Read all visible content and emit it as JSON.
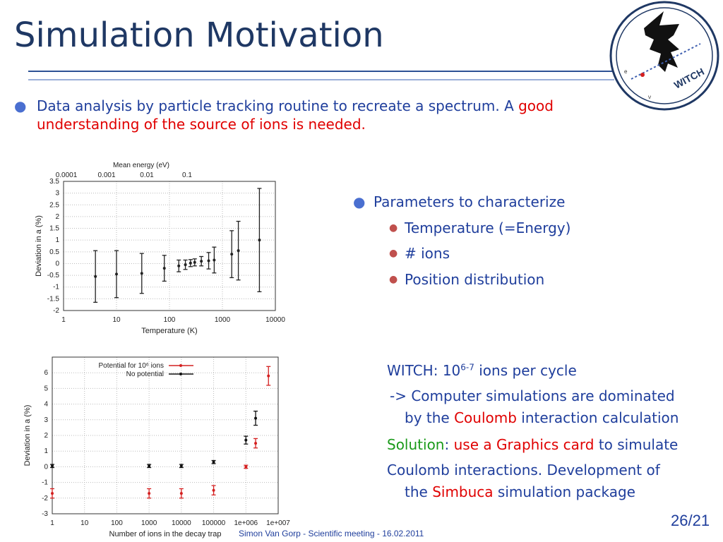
{
  "slide": {
    "title": "Simulation Motivation",
    "bullet1": {
      "text_a": "Data analysis by particle tracking routine to recreate a spectrum. A ",
      "text_b": "good",
      "text_c": "understanding of the source of ions is needed."
    },
    "params": {
      "heading": "Parameters to characterize",
      "items": [
        "Temperature (=Energy)",
        "# ions",
        "Position distribution"
      ]
    },
    "witch": {
      "line1_a": "WITCH: 10",
      "line1_sup": "6-7",
      "line1_b": " ions per cycle",
      "line2": "-> Computer simulations are dominated",
      "line3_a": "by the ",
      "line3_b": "Coulomb",
      "line3_c": " interaction calculation",
      "line4_a": "Solution",
      "line4_b": ": ",
      "line4_c": "use a Graphics card",
      "line4_d": " to simulate",
      "line5": "Coulomb interactions. Development of",
      "line6_a": "the ",
      "line6_b": "Simbuca",
      "line6_c": " simulation package"
    },
    "footer": "Simon Van Gorp - Scientific meeting - 16.02.2011",
    "page": "26/21",
    "logo_text": "WITCH",
    "logo_small": [
      "e",
      "ν"
    ]
  },
  "colors": {
    "title": "#1f3864",
    "text": "#1f3e9c",
    "highlight": "#e00000",
    "solution": "#1a9a1a"
  },
  "chart_data": [
    {
      "type": "scatter",
      "title": "",
      "top_axis_label": "Mean energy (eV)",
      "top_ticks": [
        "0.0001",
        "0.001",
        "0.01",
        "0.1"
      ],
      "xlabel": "Temperature (K)",
      "ylabel": "Deviation in a (%)",
      "xscale": "log",
      "xlim": [
        1,
        10000
      ],
      "ylim": [
        -2,
        3.5
      ],
      "xticks": [
        "1",
        "10",
        "100",
        "1000",
        "10000"
      ],
      "yticks": [
        "3.5",
        "3",
        "2.5",
        "2",
        "1.5",
        "1",
        "0.5",
        "0",
        "-0.5",
        "-1",
        "-1.5",
        "-2"
      ],
      "grid": true,
      "series": [
        {
          "color": "#222222",
          "points": [
            {
              "x": 4,
              "y": -0.55,
              "err": 1.1
            },
            {
              "x": 10,
              "y": -0.45,
              "err": 1.0
            },
            {
              "x": 30,
              "y": -0.42,
              "err": 0.85
            },
            {
              "x": 80,
              "y": -0.2,
              "err": 0.55
            },
            {
              "x": 150,
              "y": -0.1,
              "err": 0.25
            },
            {
              "x": 200,
              "y": -0.05,
              "err": 0.2
            },
            {
              "x": 250,
              "y": 0.02,
              "err": 0.15
            },
            {
              "x": 300,
              "y": 0.05,
              "err": 0.15
            },
            {
              "x": 400,
              "y": 0.1,
              "err": 0.2
            },
            {
              "x": 550,
              "y": 0.12,
              "err": 0.35
            },
            {
              "x": 700,
              "y": 0.15,
              "err": 0.55
            },
            {
              "x": 1500,
              "y": 0.4,
              "err": 1.0
            },
            {
              "x": 2000,
              "y": 0.55,
              "err": 1.25
            },
            {
              "x": 5000,
              "y": 1.0,
              "err": 2.2
            }
          ]
        }
      ]
    },
    {
      "type": "scatter",
      "title": "",
      "xlabel": "Number of ions in the decay trap",
      "ylabel": "Deviation in a (%)",
      "xscale": "log",
      "xlim": [
        1,
        10000000
      ],
      "ylim": [
        -3,
        7
      ],
      "xticks": [
        "1",
        "10",
        "100",
        "1000",
        "10000",
        "100000",
        "1e+006",
        "1e+007"
      ],
      "yticks": [
        "6",
        "5",
        "4",
        "3",
        "2",
        "1",
        "0",
        "-1",
        "-2",
        "-3"
      ],
      "grid": true,
      "legend": "top-left",
      "series": [
        {
          "name": "Potential for 10⁶ ions",
          "color": "#d42020",
          "points": [
            {
              "x": 1,
              "y": -1.7,
              "err": 0.3
            },
            {
              "x": 1000,
              "y": -1.7,
              "err": 0.3
            },
            {
              "x": 10000,
              "y": -1.7,
              "err": 0.3
            },
            {
              "x": 100000,
              "y": -1.5,
              "err": 0.3
            },
            {
              "x": 1000000,
              "y": 0.0,
              "err": 0.1
            },
            {
              "x": 2000000,
              "y": 1.5,
              "err": 0.3
            },
            {
              "x": 5000000,
              "y": 5.8,
              "err": 0.6
            }
          ]
        },
        {
          "name": "No potential",
          "color": "#111111",
          "points": [
            {
              "x": 1,
              "y": 0.05,
              "err": 0.1
            },
            {
              "x": 1000,
              "y": 0.05,
              "err": 0.1
            },
            {
              "x": 10000,
              "y": 0.05,
              "err": 0.1
            },
            {
              "x": 100000,
              "y": 0.3,
              "err": 0.1
            },
            {
              "x": 1000000,
              "y": 1.7,
              "err": 0.25
            },
            {
              "x": 2000000,
              "y": 3.1,
              "err": 0.45
            }
          ]
        }
      ]
    }
  ]
}
